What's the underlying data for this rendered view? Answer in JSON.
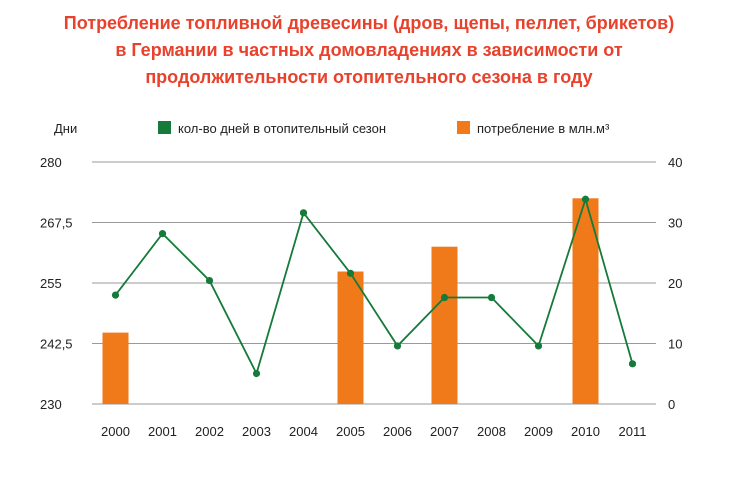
{
  "chart_data": {
    "type": "bar+line",
    "title": "Потребление топливной древесины (дров, щепы, пеллет, брикетов)\nв Германии в частных домовладениях в зависимости от\nпродолжительности отопительного сезона в году",
    "categories": [
      "2000",
      "2001",
      "2002",
      "2003",
      "2004",
      "2005",
      "2006",
      "2007",
      "2008",
      "2009",
      "2010",
      "2011"
    ],
    "left_axis": {
      "label": "Дни",
      "ylim": [
        230,
        280
      ],
      "ticks": [
        "280",
        "267,5",
        "255",
        "242,5",
        "230"
      ]
    },
    "right_axis": {
      "ylim": [
        0,
        40
      ],
      "ticks": [
        "40",
        "30",
        "20",
        "10",
        "0"
      ]
    },
    "series": [
      {
        "name": "кол-во дней в отопительный сезон",
        "type": "line",
        "axis": "left",
        "color": "#157a3a",
        "values": [
          252.5,
          265.2,
          255.5,
          236.3,
          269.5,
          257,
          242,
          252,
          252,
          242,
          272.3,
          238.3
        ]
      },
      {
        "name": "потребление в млн.м³",
        "type": "bar",
        "axis": "right",
        "color": "#f07a1a",
        "values": [
          11.8,
          null,
          null,
          null,
          null,
          21.9,
          null,
          26,
          null,
          null,
          34,
          null
        ]
      }
    ],
    "grid": "horizontal",
    "legend_position": "top"
  }
}
